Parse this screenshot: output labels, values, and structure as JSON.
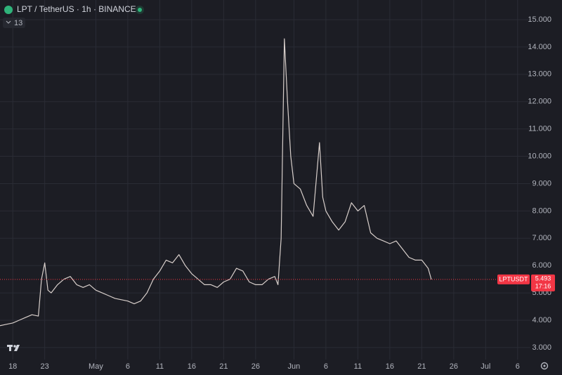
{
  "chart_data": {
    "type": "line",
    "title": "LPT / TetherUS · 1h · BINANCE",
    "indicator_count": 13,
    "symbol": "LPTUSDT",
    "last_price": 5.493,
    "countdown": "17:16",
    "color": "#d8cfcb",
    "price_line_color": "#f23645",
    "grid": true,
    "x": [
      "04-16",
      "04-17",
      "04-18",
      "04-19",
      "04-20",
      "04-21",
      "04-22",
      "04-22 12",
      "04-23",
      "04-23 12",
      "04-24",
      "04-25",
      "04-26",
      "04-27",
      "04-28",
      "04-29",
      "04-30",
      "05-01",
      "05-02",
      "05-03",
      "05-04",
      "05-05",
      "05-06",
      "05-07",
      "05-08",
      "05-09",
      "05-10",
      "05-11",
      "05-12",
      "05-13",
      "05-14",
      "05-15",
      "05-16",
      "05-17",
      "05-18",
      "05-19",
      "05-20",
      "05-21",
      "05-22",
      "05-23",
      "05-24",
      "05-25",
      "05-26",
      "05-27",
      "05-28",
      "05-29",
      "05-29 12",
      "05-30",
      "05-30 12",
      "05-31",
      "05-31 12",
      "06-01",
      "06-02",
      "06-03",
      "06-04",
      "06-05",
      "06-05 12",
      "06-06",
      "06-07",
      "06-08",
      "06-09",
      "06-10",
      "06-11",
      "06-12",
      "06-13",
      "06-14",
      "06-15",
      "06-16",
      "06-17",
      "06-18",
      "06-19",
      "06-20",
      "06-21",
      "06-22",
      "06-22 12"
    ],
    "values": [
      3.8,
      3.85,
      3.9,
      4.0,
      4.1,
      4.2,
      4.15,
      5.5,
      6.1,
      5.1,
      5.0,
      5.3,
      5.5,
      5.6,
      5.3,
      5.2,
      5.3,
      5.1,
      5.0,
      4.9,
      4.8,
      4.75,
      4.7,
      4.6,
      4.7,
      5.0,
      5.5,
      5.8,
      6.2,
      6.1,
      6.4,
      6.0,
      5.7,
      5.5,
      5.3,
      5.3,
      5.2,
      5.4,
      5.5,
      5.9,
      5.8,
      5.4,
      5.3,
      5.3,
      5.5,
      5.6,
      5.3,
      7.0,
      14.3,
      12.0,
      10.0,
      9.0,
      8.8,
      8.2,
      7.8,
      10.5,
      8.5,
      8.0,
      7.6,
      7.3,
      7.6,
      8.3,
      8.0,
      8.2,
      7.2,
      7.0,
      6.9,
      6.8,
      6.9,
      6.6,
      6.3,
      6.2,
      6.2,
      5.9,
      5.49
    ],
    "xlim": [
      "04-16",
      "07-08"
    ],
    "xticks": [
      {
        "value": "04-18",
        "label": "18"
      },
      {
        "value": "04-23",
        "label": "23"
      },
      {
        "value": "05-01",
        "label": "May"
      },
      {
        "value": "05-06",
        "label": "6"
      },
      {
        "value": "05-11",
        "label": "11"
      },
      {
        "value": "05-16",
        "label": "16"
      },
      {
        "value": "05-21",
        "label": "21"
      },
      {
        "value": "05-26",
        "label": "26"
      },
      {
        "value": "06-01",
        "label": "Jun"
      },
      {
        "value": "06-06",
        "label": "6"
      },
      {
        "value": "06-11",
        "label": "11"
      },
      {
        "value": "06-16",
        "label": "16"
      },
      {
        "value": "06-21",
        "label": "21"
      },
      {
        "value": "06-26",
        "label": "26"
      },
      {
        "value": "07-01",
        "label": "Jul"
      },
      {
        "value": "07-06",
        "label": "6"
      }
    ],
    "ylim": [
      2.56,
      15.72
    ],
    "yticks": [
      {
        "value": 3,
        "label": "3.000"
      },
      {
        "value": 4,
        "label": "4.000"
      },
      {
        "value": 5,
        "label": "5.000"
      },
      {
        "value": 6,
        "label": "6.000"
      },
      {
        "value": 7,
        "label": "7.000"
      },
      {
        "value": 8,
        "label": "8.000"
      },
      {
        "value": 9,
        "label": "9.000"
      },
      {
        "value": 10,
        "label": "10.000"
      },
      {
        "value": 11,
        "label": "11.000"
      },
      {
        "value": 12,
        "label": "12.000"
      },
      {
        "value": 13,
        "label": "13.000"
      },
      {
        "value": 14,
        "label": "14.000"
      },
      {
        "value": 15,
        "label": "15.000"
      }
    ]
  }
}
